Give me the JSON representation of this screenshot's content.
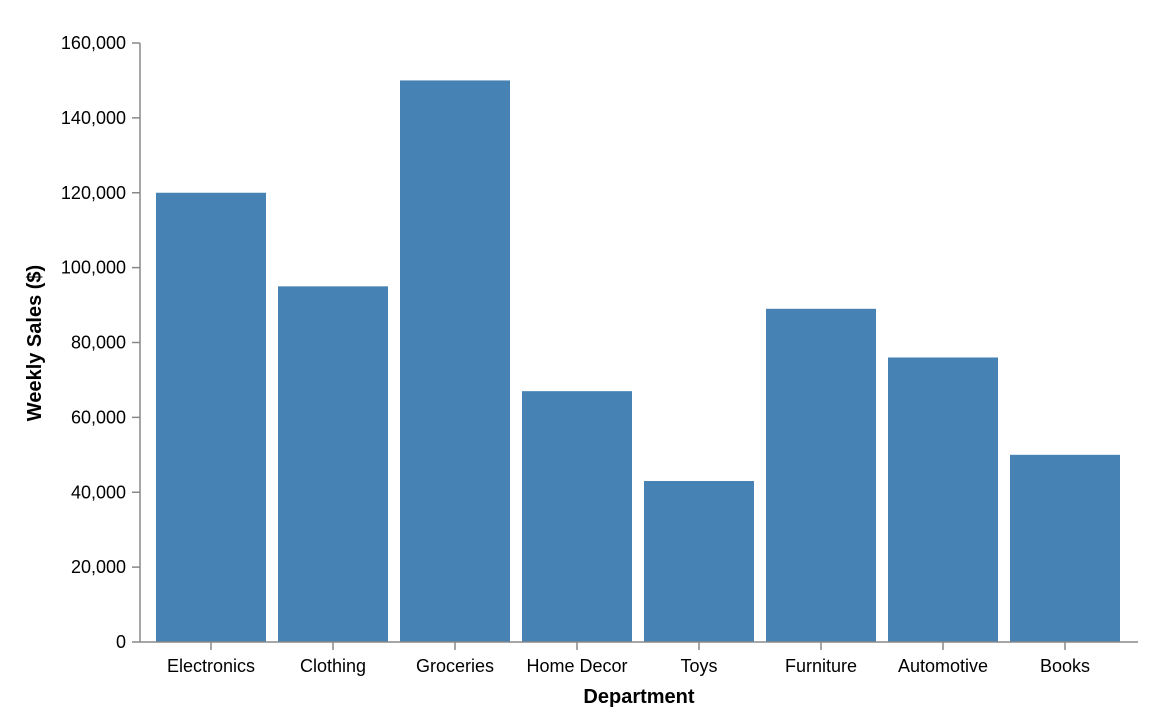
{
  "chart_data": {
    "type": "bar",
    "categories": [
      "Electronics",
      "Clothing",
      "Groceries",
      "Home Decor",
      "Toys",
      "Furniture",
      "Automotive",
      "Books"
    ],
    "values": [
      120000,
      95000,
      150000,
      67000,
      43000,
      89000,
      76000,
      50000
    ],
    "xlabel": "Department",
    "ylabel": "Weekly Sales ($)",
    "ylim": [
      0,
      160000
    ],
    "yticks": [
      0,
      20000,
      40000,
      60000,
      80000,
      100000,
      120000,
      140000,
      160000
    ],
    "ytick_labels": [
      "0",
      "20,000",
      "40,000",
      "60,000",
      "80,000",
      "100,000",
      "120,000",
      "140,000",
      "160,000"
    ],
    "grid": false,
    "bar_color": "#4682b4"
  }
}
